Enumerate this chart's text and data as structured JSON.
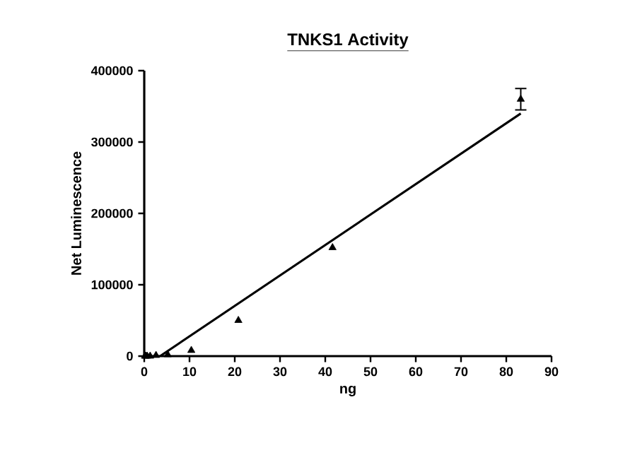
{
  "chart_data": {
    "type": "scatter",
    "title": "TNKS1 Activity",
    "xlabel": "ng",
    "ylabel": "Net Luminescence",
    "xlim": [
      0,
      90
    ],
    "ylim": [
      0,
      400000
    ],
    "xticks": [
      0,
      10,
      20,
      30,
      40,
      50,
      60,
      70,
      80,
      90
    ],
    "yticks": [
      0,
      100000,
      200000,
      300000,
      400000
    ],
    "grid": false,
    "series": [
      {
        "marker": "triangle",
        "color": "#000000",
        "x": [
          0.16,
          0.33,
          0.65,
          1.3,
          2.6,
          5.2,
          10.4,
          20.8,
          41.6,
          83.2
        ],
        "values": [
          0,
          0,
          0,
          0,
          1000,
          2000,
          8000,
          50000,
          152000,
          360000
        ],
        "errors": [
          null,
          null,
          null,
          null,
          null,
          null,
          null,
          null,
          null,
          15000
        ]
      },
      {
        "type": "line",
        "color": "#000000",
        "x": [
          3.5,
          83.2
        ],
        "values": [
          0,
          340000
        ],
        "line_style": "solid"
      }
    ]
  }
}
